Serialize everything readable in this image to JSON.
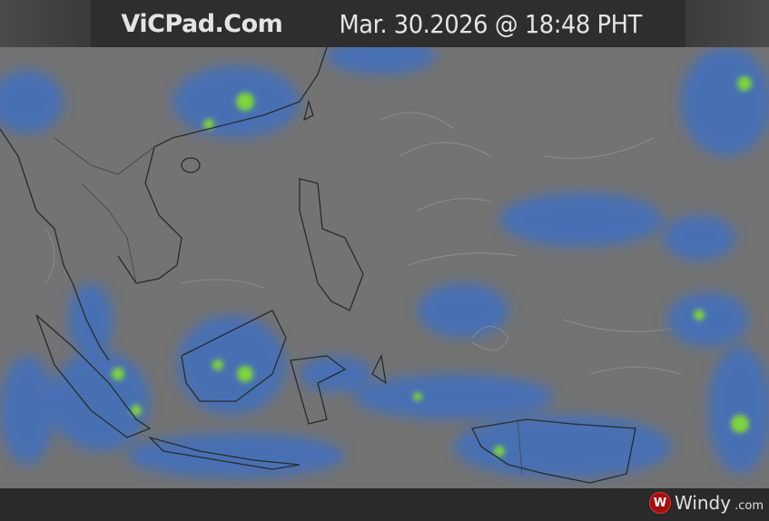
{
  "header": {
    "site": "ViCPad.Com",
    "timestamp": "Mar. 30.2026  @  18:48 PHT"
  },
  "map": {
    "layer": "precipitation-wind",
    "colors": {
      "ocean": "#737373",
      "rain_light": "#3f6fbf",
      "rain_moderate": "#3aa0c8",
      "rain_heavy": "#7fd43a",
      "coast": "#2a2a2a"
    }
  },
  "footer": {
    "brand": "Windy",
    "brand_tld": ".com",
    "brand_icon": "windy-logo-icon"
  }
}
